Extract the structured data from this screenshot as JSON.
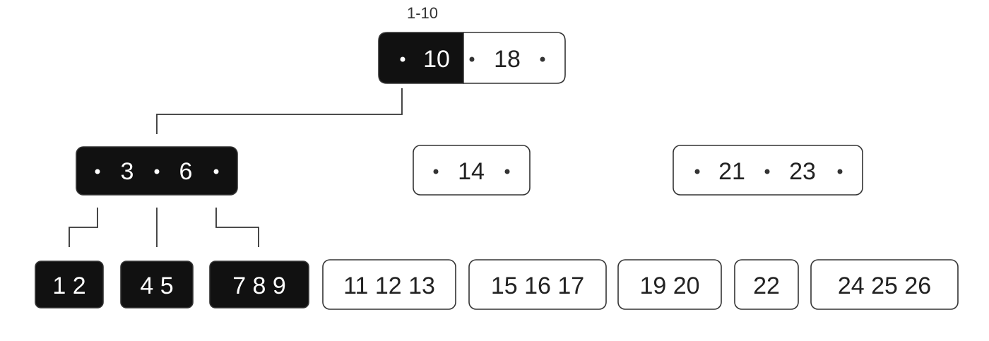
{
  "range_label": "1-10",
  "colors": {
    "highlight": "#111111",
    "normal": "#ffffff",
    "stroke": "#333333"
  },
  "root": {
    "keys": [
      {
        "value": "10",
        "highlighted": true
      },
      {
        "value": "18",
        "highlighted": false
      }
    ]
  },
  "internal": [
    {
      "keys": [
        "3",
        "6"
      ],
      "highlighted": true
    },
    {
      "keys": [
        "14"
      ],
      "highlighted": false
    },
    {
      "keys": [
        "21",
        "23"
      ],
      "highlighted": false
    }
  ],
  "leaves": [
    {
      "text": "1 2",
      "highlighted": true
    },
    {
      "text": "4 5",
      "highlighted": true
    },
    {
      "text": "7 8 9",
      "highlighted": true
    },
    {
      "text": "11 12 13",
      "highlighted": false
    },
    {
      "text": "15 16 17",
      "highlighted": false
    },
    {
      "text": "19 20",
      "highlighted": false
    },
    {
      "text": "22",
      "highlighted": false
    },
    {
      "text": "24 25 26",
      "highlighted": false
    }
  ]
}
